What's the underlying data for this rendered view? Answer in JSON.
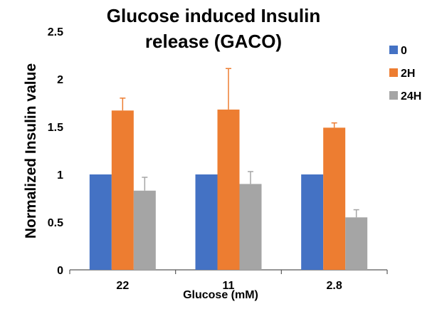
{
  "chart_data": {
    "type": "bar",
    "title_lines": [
      "Glucose induced Insulin",
      "release (GACO)"
    ],
    "xlabel": "Glucose (mM)",
    "ylabel": "Normalized Insulin value",
    "categories": [
      "22",
      "11",
      "2.8"
    ],
    "ylim": [
      0,
      2.5
    ],
    "yticks": [
      "0",
      "0.5",
      "1",
      "1.5",
      "2",
      "2.5"
    ],
    "series": [
      {
        "name": "0",
        "color": "#4472C4",
        "values": [
          1.0,
          1.0,
          1.0
        ],
        "errors": [
          0,
          0,
          0
        ]
      },
      {
        "name": "2H",
        "color": "#ED7D31",
        "values": [
          1.67,
          1.68,
          1.49
        ],
        "errors": [
          0.13,
          0.43,
          0.05
        ]
      },
      {
        "name": "24H",
        "color": "#A5A5A5",
        "values": [
          0.83,
          0.9,
          0.55
        ],
        "errors": [
          0.14,
          0.13,
          0.08
        ]
      }
    ],
    "grid": false,
    "legend_position": "right"
  }
}
